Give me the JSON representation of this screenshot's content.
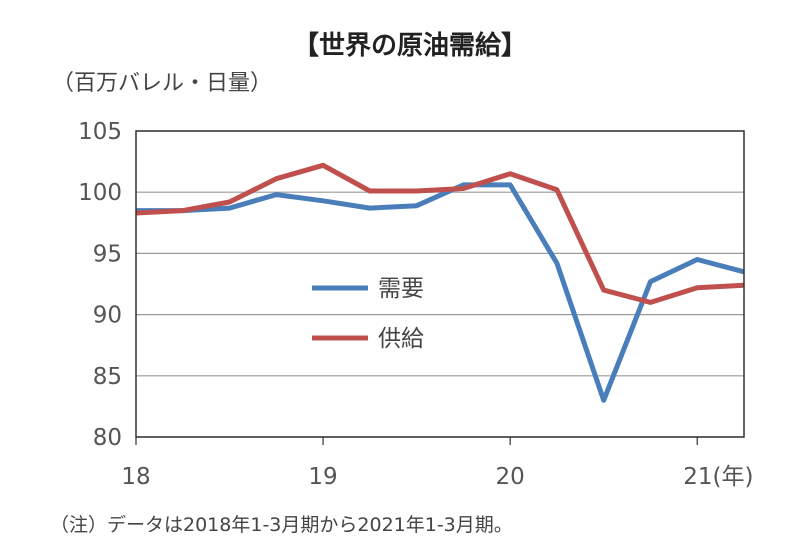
{
  "chart_data": {
    "type": "line",
    "title": "【世界の原油需給】",
    "ylabel": "（百万バレル・日量）",
    "ylim": [
      80,
      105
    ],
    "yticks": [
      80,
      85,
      90,
      95,
      100,
      105
    ],
    "xlim": [
      2018.0,
      2021.25
    ],
    "xticks": [
      {
        "value": 2018,
        "label": "18"
      },
      {
        "value": 2019,
        "label": "19"
      },
      {
        "value": 2020,
        "label": "20"
      },
      {
        "value": 2021,
        "label": "21(年)"
      }
    ],
    "grid": true,
    "legend_position": "center-left",
    "series": [
      {
        "name": "需要",
        "color": "#4a7ebb",
        "x": [
          2018.0,
          2018.25,
          2018.5,
          2018.75,
          2019.0,
          2019.25,
          2019.5,
          2019.75,
          2020.0,
          2020.25,
          2020.5,
          2020.75,
          2021.0,
          2021.25
        ],
        "values": [
          98.5,
          98.5,
          98.7,
          99.8,
          99.3,
          98.7,
          98.9,
          100.6,
          100.6,
          94.2,
          83.0,
          92.7,
          94.5,
          93.5
        ]
      },
      {
        "name": "供給",
        "color": "#c0504d",
        "x": [
          2018.0,
          2018.25,
          2018.5,
          2018.75,
          2019.0,
          2019.25,
          2019.5,
          2019.75,
          2020.0,
          2020.25,
          2020.5,
          2020.75,
          2021.0,
          2021.25
        ],
        "values": [
          98.3,
          98.5,
          99.2,
          101.1,
          102.2,
          100.1,
          100.1,
          100.3,
          101.5,
          100.2,
          92.0,
          91.0,
          92.2,
          92.4
        ]
      }
    ]
  },
  "note": "（注）データは2018年1-3月期から2021年1-3月期。"
}
